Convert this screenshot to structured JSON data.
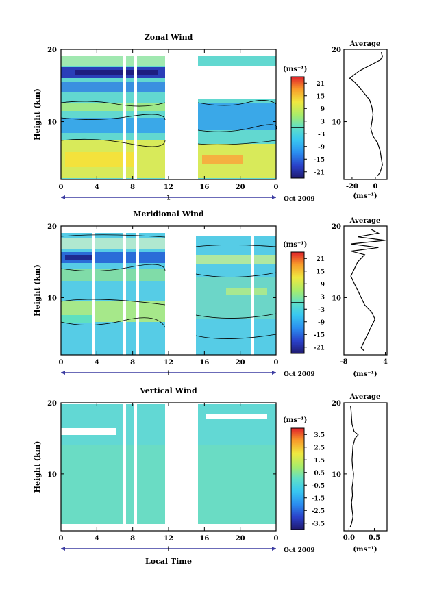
{
  "chart_data": {
    "type": "heatmap",
    "shared": {
      "time_ticks": [
        "0",
        "4",
        "8",
        "12",
        "16",
        "20",
        "0"
      ],
      "time_tick_values": [
        0,
        4,
        8,
        12,
        16,
        20,
        24
      ],
      "xlim": [
        0,
        24
      ],
      "day_label": "1",
      "date_label": "Oct 2009",
      "ylabel": "Height (km)",
      "xlabel": "Local Time",
      "ylim": [
        2,
        20
      ],
      "height_ticks": [
        "20",
        "10"
      ],
      "height_tick_values": [
        20,
        10
      ],
      "profile_title": "Average",
      "profile_unit": "(ms⁻¹)",
      "colorbar_unit": "(ms⁻¹)",
      "data_gaps_hours": [
        [
          7.0,
          7.3
        ],
        [
          8.1,
          8.4
        ],
        [
          11.9,
          15.3
        ]
      ]
    },
    "panels": [
      {
        "title": "Zonal Wind",
        "colorbar_ticks": [
          "21",
          "15",
          "9",
          "3",
          "-3",
          "-9",
          "-15",
          "-21"
        ],
        "colorbar_range": [
          -24,
          24
        ],
        "profile_ticks": [
          "-20",
          "0"
        ],
        "profile_tick_values": [
          -20,
          0
        ],
        "profile_xlim": [
          -27,
          10
        ],
        "profile_height": [
          2.5,
          3,
          4,
          5,
          6,
          7,
          8,
          9,
          10,
          11,
          12,
          13,
          14,
          14.8,
          15.5,
          16,
          17,
          18,
          18.5,
          19,
          19.6
        ],
        "profile_value": [
          2,
          4,
          6,
          5,
          4,
          2,
          -2,
          -4,
          -3,
          -2,
          -3,
          -5,
          -10,
          -14,
          -18,
          -22,
          -14,
          -2,
          4,
          6,
          5
        ]
      },
      {
        "title": "Meridional Wind",
        "colorbar_ticks": [
          "21",
          "15",
          "9",
          "3",
          "-3",
          "-9",
          "-15",
          "-21"
        ],
        "colorbar_range": [
          -24,
          24
        ],
        "profile_ticks": [
          "-8",
          "4"
        ],
        "profile_tick_values": [
          -8,
          4
        ],
        "profile_xlim": [
          -8,
          4.5
        ],
        "profile_height": [
          2.5,
          3,
          4,
          5,
          6,
          7,
          8,
          9,
          10,
          11,
          12,
          13,
          14,
          15,
          16,
          16.5,
          17,
          17.5,
          18,
          18.5,
          19,
          19.5
        ],
        "profile_value": [
          -2,
          -3,
          -2,
          -1,
          0,
          1,
          0,
          -2,
          -3,
          -4,
          -5,
          -6,
          -5,
          -4,
          -2,
          -6,
          2,
          -6,
          4,
          -4,
          2,
          0
        ]
      },
      {
        "title": "Vertical Wind",
        "colorbar_ticks": [
          "3.5",
          "2.5",
          "1.5",
          "0.5",
          "-0.5",
          "-1.5",
          "-2.5",
          "-3.5"
        ],
        "colorbar_range": [
          -4,
          4
        ],
        "profile_ticks": [
          "0.0",
          "0.5"
        ],
        "profile_tick_values": [
          0,
          0.5
        ],
        "profile_xlim": [
          -0.1,
          0.75
        ],
        "profile_height": [
          2.5,
          3,
          4,
          5,
          6,
          7,
          8,
          9,
          10,
          11,
          12,
          13,
          14,
          15,
          15.5,
          16,
          17,
          18,
          19,
          19.6
        ],
        "profile_value": [
          0.02,
          0.05,
          0.08,
          0.06,
          0.05,
          0.07,
          0.06,
          0.08,
          0.09,
          0.07,
          0.06,
          0.07,
          0.08,
          0.12,
          0.18,
          0.1,
          0.06,
          0.05,
          0.04,
          0.03
        ]
      }
    ]
  }
}
